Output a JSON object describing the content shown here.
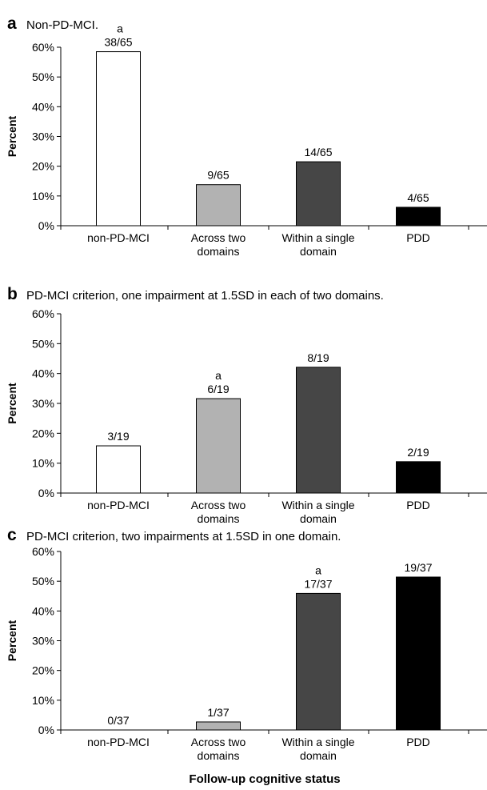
{
  "figure": {
    "xlabel": "Follow-up cognitive status"
  },
  "colors": {
    "non_pd_mci": "#ffffff",
    "across_two_domains": "#b2b2b2",
    "within_single_domain": "#464646",
    "pdd": "#000000",
    "axis": "#000000",
    "text": "#000000"
  },
  "chart_data": [
    {
      "panel": "a",
      "type": "bar",
      "title": "Non-PD-MCI.",
      "ylabel": "Percent",
      "ylim": [
        0,
        60
      ],
      "yticks": [
        "0%",
        "10%",
        "20%",
        "30%",
        "40%",
        "50%",
        "60%"
      ],
      "grid": false,
      "categories": [
        "non-PD-MCI",
        "Across two domains",
        "Within a single domain",
        "PDD"
      ],
      "category_labels": [
        [
          "non-PD-MCI"
        ],
        [
          "Across two",
          "domains"
        ],
        [
          "Within a single",
          "domain"
        ],
        [
          "PDD"
        ]
      ],
      "values": [
        58.5,
        13.8,
        21.5,
        6.2
      ],
      "data_labels": [
        "38/65",
        "9/65",
        "14/65",
        "4/65"
      ],
      "marker_label": "a",
      "marker_category": "non-PD-MCI"
    },
    {
      "panel": "b",
      "type": "bar",
      "title": "PD-MCI criterion, one impairment at 1.5SD in each of two domains.",
      "ylabel": "Percent",
      "ylim": [
        0,
        60
      ],
      "yticks": [
        "0%",
        "10%",
        "20%",
        "30%",
        "40%",
        "50%",
        "60%"
      ],
      "grid": false,
      "categories": [
        "non-PD-MCI",
        "Across two domains",
        "Within a single domain",
        "PDD"
      ],
      "category_labels": [
        [
          "non-PD-MCI"
        ],
        [
          "Across two",
          "domains"
        ],
        [
          "Within a single",
          "domain"
        ],
        [
          "PDD"
        ]
      ],
      "values": [
        15.8,
        31.6,
        42.1,
        10.5
      ],
      "data_labels": [
        "3/19",
        "6/19",
        "8/19",
        "2/19"
      ],
      "marker_label": "a",
      "marker_category": "Across two domains"
    },
    {
      "panel": "c",
      "type": "bar",
      "title": "PD-MCI criterion, two impairments at 1.5SD in one domain.",
      "ylabel": "Percent",
      "ylim": [
        0,
        60
      ],
      "yticks": [
        "0%",
        "10%",
        "20%",
        "30%",
        "40%",
        "50%",
        "60%"
      ],
      "grid": false,
      "categories": [
        "non-PD-MCI",
        "Across two domains",
        "Within a single domain",
        "PDD"
      ],
      "category_labels": [
        [
          "non-PD-MCI"
        ],
        [
          "Across two",
          "domains"
        ],
        [
          "Within a single",
          "domain"
        ],
        [
          "PDD"
        ]
      ],
      "values": [
        0,
        2.7,
        45.9,
        51.4
      ],
      "data_labels": [
        "0/37",
        "1/37",
        "17/37",
        "19/37"
      ],
      "marker_label": "a",
      "marker_category": "Within a single domain"
    }
  ]
}
